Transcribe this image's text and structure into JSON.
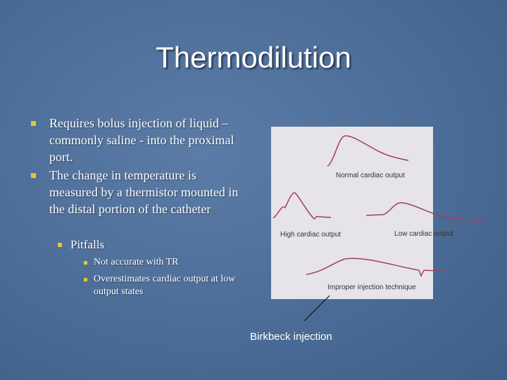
{
  "title": "Thermodilution",
  "bullets": [
    {
      "text": "Requires bolus injection of liquid – commonly saline  - into the proximal port."
    },
    {
      "text": "The change in temperature is measured by a thermistor mounted in the distal portion of the catheter",
      "children": [
        {
          "text": "Pitfalls",
          "children": [
            {
              "text": "Not accurate with TR"
            },
            {
              "text": "Overestimates cardiac output at low output states"
            }
          ]
        }
      ]
    }
  ],
  "figure": {
    "labels": [
      "Normal cardiac output",
      "High cardiac output",
      "Low cardiac output",
      "Improper injection technique"
    ]
  },
  "annotation": "Birkbeck injection"
}
